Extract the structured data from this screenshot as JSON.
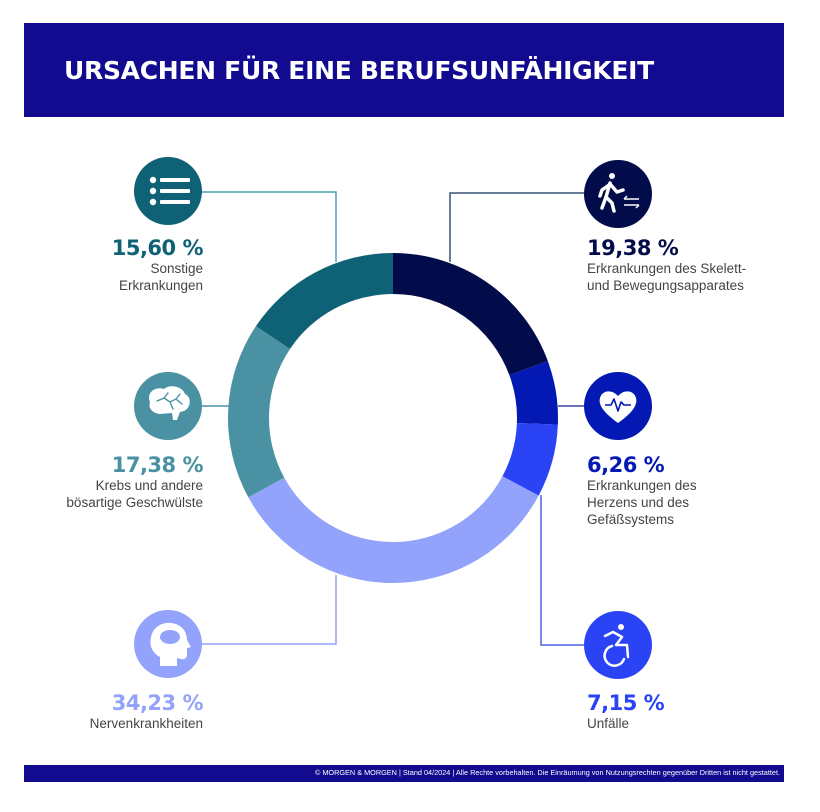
{
  "header": {
    "title": "URSACHEN FÜR EINE BERUFSUNFÄHIGKEIT",
    "background_color": "#120a8f"
  },
  "segments": [
    {
      "id": "skelett",
      "percent_label": "19,38 %",
      "description_lines": [
        "Erkrankungen des Skelett-",
        "und Bewegungsapparates"
      ],
      "color": "#020c4a",
      "icon": "walking-person-icon"
    },
    {
      "id": "herz",
      "percent_label": "6,26 %",
      "description_lines": [
        "Erkrankungen des",
        "Herzens und des",
        "Gefäßsystems"
      ],
      "color": "#0418b4",
      "icon": "heart-pulse-icon"
    },
    {
      "id": "unfaelle",
      "percent_label": "7,15 %",
      "description_lines": [
        "Unfälle"
      ],
      "color": "#2a43f5",
      "icon": "wheelchair-icon"
    },
    {
      "id": "nerven",
      "percent_label": "34,23 %",
      "description_lines": [
        "Nervenkrankheiten"
      ],
      "color": "#93a2fb",
      "icon": "head-mind-icon"
    },
    {
      "id": "krebs",
      "percent_label": "17,38 %",
      "description_lines": [
        "Krebs und andere",
        "bösartige Geschwülste"
      ],
      "color": "#4a92a3",
      "icon": "brain-icon"
    },
    {
      "id": "sonstige",
      "percent_label": "15,60 %",
      "description_lines": [
        "Sonstige",
        "Erkrankungen"
      ],
      "color": "#0f6275",
      "icon": "list-icon"
    }
  ],
  "footer": {
    "text": "© MORGEN & MORGEN | Stand 04/2024 | Alle Rechte vorbehalten. Die Einräumung von Nutzungsrechten gegenüber Dritten ist nicht gestattet."
  },
  "chart_data": {
    "type": "pie",
    "title": "URSACHEN FÜR EINE BERUFSUNFÄHIGKEIT",
    "subtype": "donut",
    "categories": [
      "Erkrankungen des Skelett- und Bewegungsapparates",
      "Erkrankungen des Herzens und des Gefäßsystems",
      "Unfälle",
      "Nervenkrankheiten",
      "Krebs und andere bösartige Geschwülste",
      "Sonstige Erkrankungen"
    ],
    "values": [
      19.38,
      6.26,
      7.15,
      34.23,
      17.38,
      15.6
    ],
    "unit": "%",
    "colors": [
      "#020c4a",
      "#0418b4",
      "#2a43f5",
      "#93a2fb",
      "#4a92a3",
      "#0f6275"
    ],
    "start_angle": "12 o'clock, clockwise",
    "legend": "labels with icons placed around the ring"
  }
}
